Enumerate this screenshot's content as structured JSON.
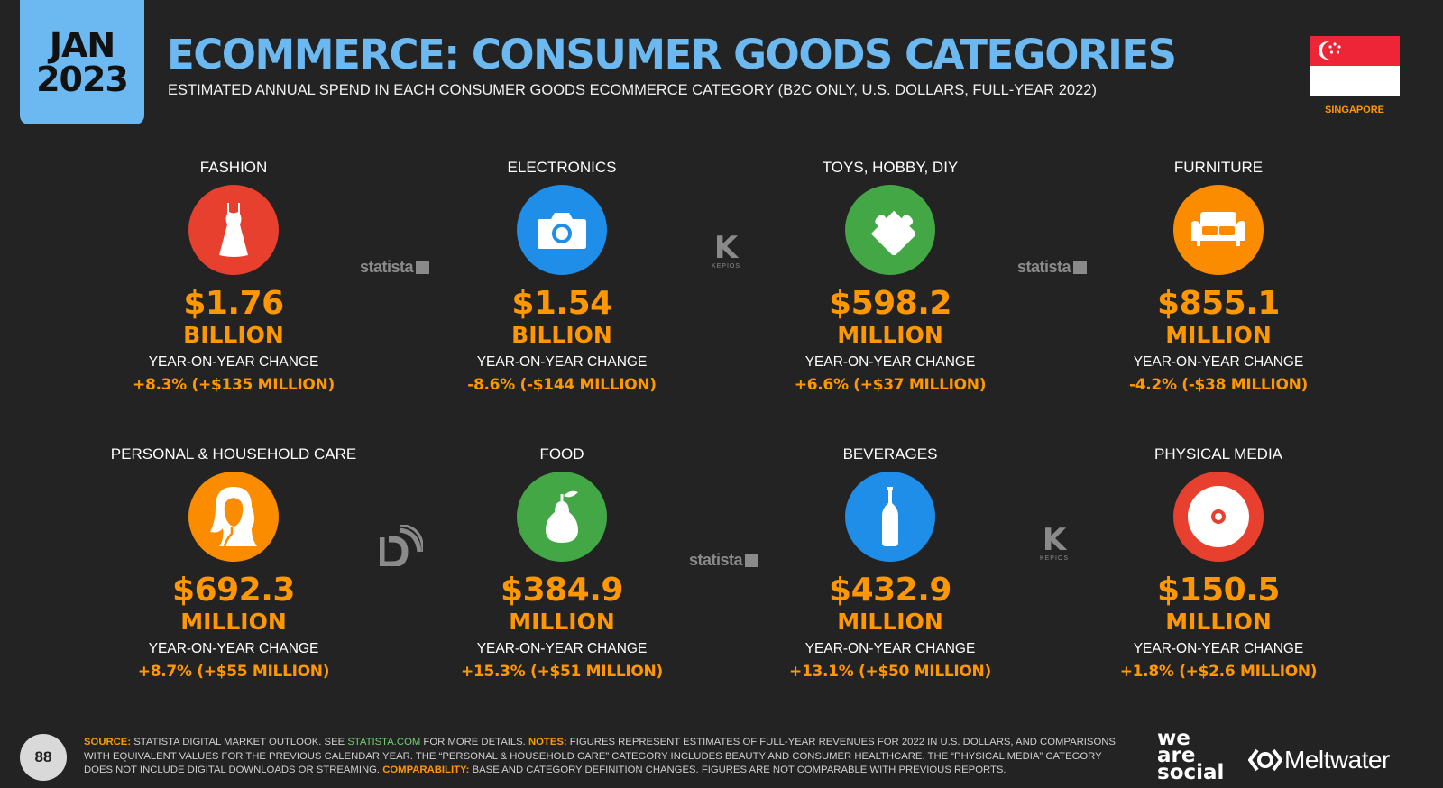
{
  "header": {
    "month": "JAN",
    "year": "2023",
    "title": "ECOMMERCE: CONSUMER GOODS CATEGORIES",
    "subtitle": "ESTIMATED ANNUAL SPEND IN EACH CONSUMER GOODS ECOMMERCE CATEGORY (B2C ONLY, U.S. DOLLARS, FULL-YEAR 2022)",
    "country": "SINGAPORE"
  },
  "categories": [
    {
      "name": "FASHION",
      "value": "$1.76",
      "unit": "BILLION",
      "yoy_label": "YEAR-ON-YEAR CHANGE",
      "yoy": "+8.3% (+$135 MILLION)",
      "icon": "dress-icon",
      "color": "#e8402f"
    },
    {
      "name": "ELECTRONICS",
      "value": "$1.54",
      "unit": "BILLION",
      "yoy_label": "YEAR-ON-YEAR CHANGE",
      "yoy": "-8.6% (-$144 MILLION)",
      "icon": "camera-icon",
      "color": "#1e8ee8"
    },
    {
      "name": "TOYS, HOBBY, DIY",
      "value": "$598.2",
      "unit": "MILLION",
      "yoy_label": "YEAR-ON-YEAR CHANGE",
      "yoy": "+6.6% (+$37 MILLION)",
      "icon": "puzzle-icon",
      "color": "#43a746"
    },
    {
      "name": "FURNITURE",
      "value": "$855.1",
      "unit": "MILLION",
      "yoy_label": "YEAR-ON-YEAR CHANGE",
      "yoy": "-4.2% (-$38 MILLION)",
      "icon": "sofa-icon",
      "color": "#fb8c00"
    },
    {
      "name": "PERSONAL & HOUSEHOLD CARE",
      "value": "$692.3",
      "unit": "MILLION",
      "yoy_label": "YEAR-ON-YEAR CHANGE",
      "yoy": "+8.7% (+$55 MILLION)",
      "icon": "woman-hair-icon",
      "color": "#fb8c00"
    },
    {
      "name": "FOOD",
      "value": "$384.9",
      "unit": "MILLION",
      "yoy_label": "YEAR-ON-YEAR CHANGE",
      "yoy": "+15.3% (+$51 MILLION)",
      "icon": "pear-icon",
      "color": "#43a746"
    },
    {
      "name": "BEVERAGES",
      "value": "$432.9",
      "unit": "MILLION",
      "yoy_label": "YEAR-ON-YEAR CHANGE",
      "yoy": "+13.1% (+$50 MILLION)",
      "icon": "bottle-icon",
      "color": "#1e8ee8"
    },
    {
      "name": "PHYSICAL MEDIA",
      "value": "$150.5",
      "unit": "MILLION",
      "yoy_label": "YEAR-ON-YEAR CHANGE",
      "yoy": "+1.8% (+$2.6 MILLION)",
      "icon": "disc-icon",
      "color": "#e8402f"
    }
  ],
  "watermarks": {
    "statista": "statista",
    "kepios": "KEPIOS",
    "kepios_letter": "K"
  },
  "footer": {
    "page_number": "88",
    "source_label": "SOURCE:",
    "source_text_1": " STATISTA DIGITAL MARKET OUTLOOK. SEE ",
    "source_link": "STATISTA.COM",
    "source_text_2": " FOR MORE DETAILS. ",
    "notes_label": "NOTES:",
    "notes_text": " FIGURES REPRESENT ESTIMATES OF FULL-YEAR REVENUES FOR 2022 IN U.S. DOLLARS, AND COMPARISONS WITH EQUIVALENT VALUES FOR THE PREVIOUS CALENDAR YEAR. THE “PERSONAL & HOUSEHOLD CARE” CATEGORY INCLUDES BEAUTY AND CONSUMER HEALTHCARE. THE “PHYSICAL MEDIA” CATEGORY DOES NOT INCLUDE DIGITAL DOWNLOADS OR STREAMING. ",
    "comparability_label": "COMPARABILITY:",
    "comparability_text": " BASE AND CATEGORY DEFINITION CHANGES. FIGURES ARE NOT COMPARABLE WITH PREVIOUS REPORTS.",
    "brand_1_line_1": "we",
    "brand_1_line_2": "are",
    "brand_1_line_3": "social",
    "brand_2": "Meltwater"
  }
}
